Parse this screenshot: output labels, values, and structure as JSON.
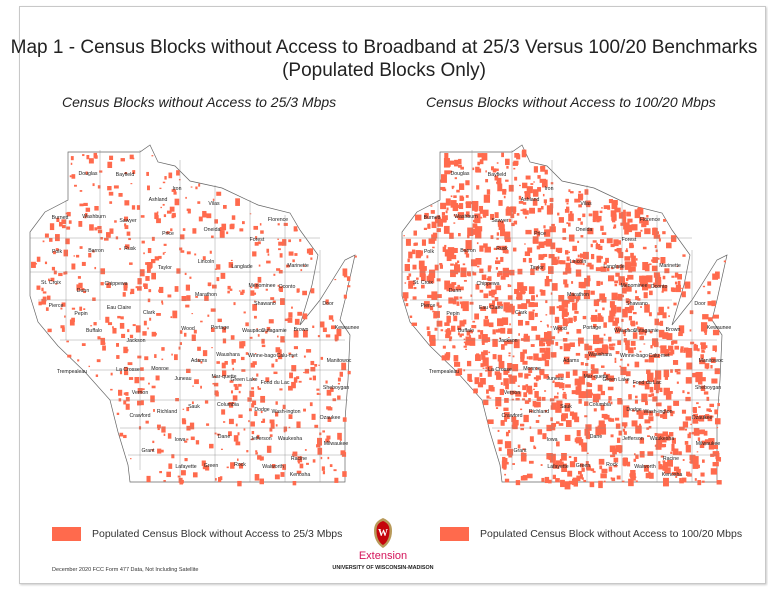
{
  "title_line1": "Map 1 - Census Blocks without Access to Broadband at 25/3 Versus 100/20 Benchmarks",
  "title_line2": "(Populated Blocks Only)",
  "maps": [
    {
      "subtitle": "Census Blocks without Access to 25/3 Mbps",
      "density": 0.35
    },
    {
      "subtitle": "Census Blocks without Access to 100/20 Mbps",
      "density": 0.8
    }
  ],
  "counties": [
    "Douglas",
    "Bayfield",
    "Iron",
    "Ashland",
    "Vilas",
    "Burnett",
    "Washburn",
    "Sawyer",
    "Florence",
    "Oneida",
    "Price",
    "Forest",
    "Polk",
    "Barron",
    "Rusk",
    "Lincoln",
    "Taylor",
    "Langlade",
    "Marinette",
    "St. Croix",
    "Chippewa",
    "Dunn",
    "Menominee",
    "Oconto",
    "Marathon",
    "Door",
    "Pierce",
    "Eau Claire",
    "Clark",
    "Shawano",
    "Pepin",
    "Buffalo",
    "Wood",
    "Portage",
    "Waupaca",
    "Outagamie",
    "Brown",
    "Kewaunee",
    "Jackson",
    "Waushara",
    "Winne-bago",
    "Calu-met",
    "Adams",
    "Manitowoc",
    "Trempealeau",
    "La Crosse",
    "Monroe",
    "Mar-quette",
    "Green Lake",
    "Juneau",
    "Fond du Lac",
    "Sheboygan",
    "Vernon",
    "Richland",
    "Sauk",
    "Columbia",
    "Dodge",
    "Wash-ington",
    "Ozaukee",
    "Crawford",
    "Iowa",
    "Dane",
    "Jefferson",
    "Waukesha",
    "Milwaukee",
    "Grant",
    "Lafayette",
    "Green",
    "Rock",
    "Walworth",
    "Racine",
    "Kenosha"
  ],
  "legend": [
    {
      "label": "Populated Census Block without Access to 25/3 Mbps",
      "color": "#ff6a4d"
    },
    {
      "label": "Populated Census Block without Access to 100/20 Mbps",
      "color": "#ff6a4d"
    }
  ],
  "logo": {
    "name": "Extension",
    "university": "UNIVERSITY OF WISCONSIN-MADISON",
    "crest_letter": "W"
  },
  "footer_note": "December 2020 FCC Form 477 Data, Not Including Satellite"
}
